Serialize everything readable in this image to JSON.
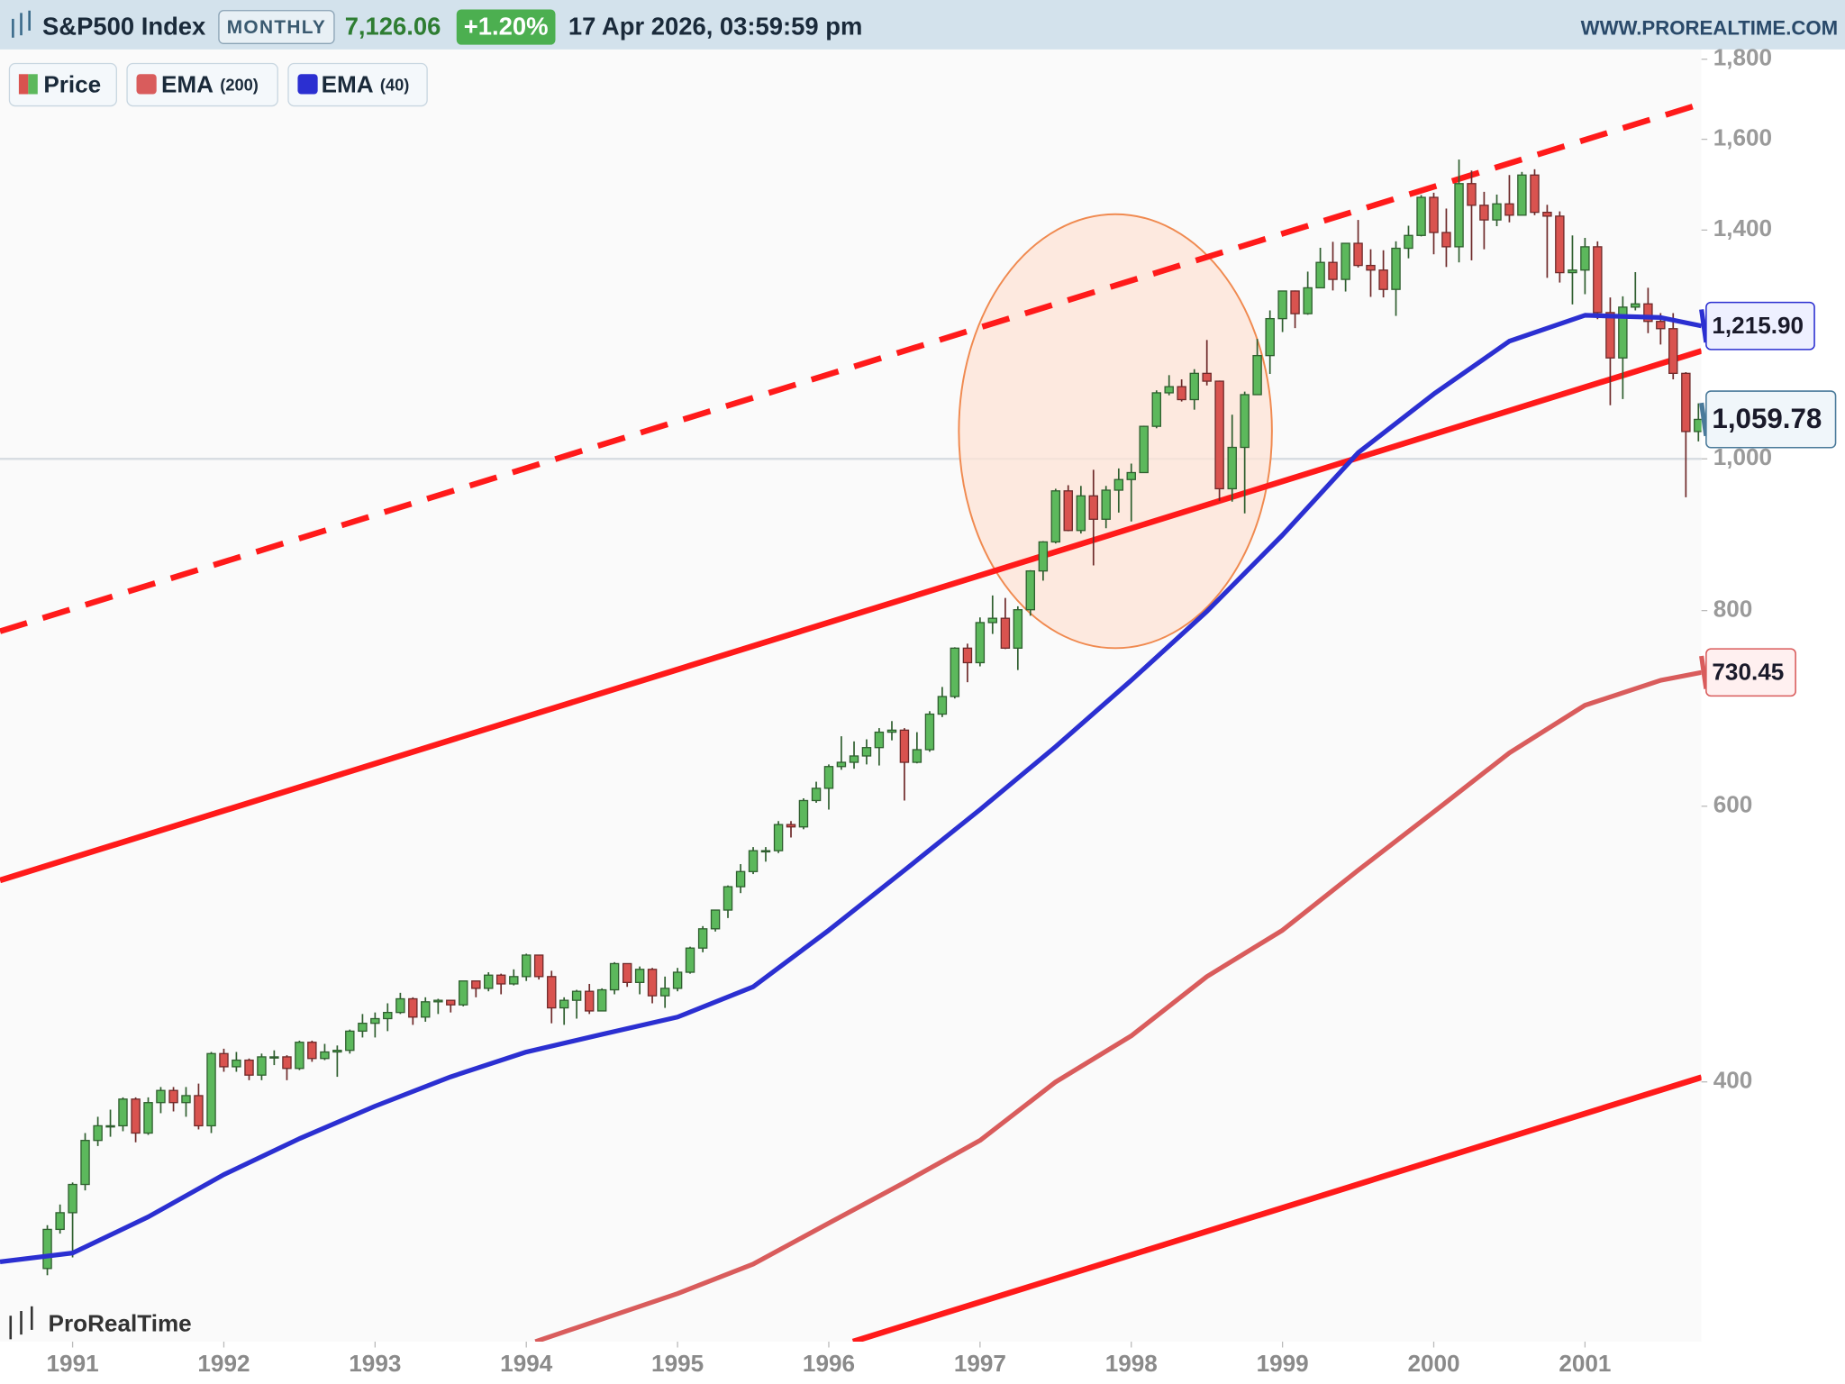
{
  "chart_data": {
    "type": "candlestick",
    "header": {
      "title": "S&P500 Index",
      "timeframe": "MONTHLY",
      "last": "7,126.06",
      "change": "+1.20%",
      "datetime": "17 Apr 2026, 03:59:59 pm",
      "source": "WWW.PROREALTIME.COM"
    },
    "legend": {
      "price": "Price",
      "ema200": "EMA",
      "ema200_period": "(200)",
      "ema40": "EMA",
      "ema40_period": "(40)"
    },
    "watermark": "ProRealTime",
    "log_scale": true,
    "up_color": "#5cb85c",
    "down_color": "#d9534f",
    "up_line": "#2f5f2f",
    "down_line": "#6e2a2a",
    "xlim": [
      1990.52,
      2001.77
    ],
    "xticks": [
      1991,
      1992,
      1993,
      1994,
      1995,
      1996,
      1997,
      1998,
      1999,
      2000,
      2001
    ],
    "ylim": [
      273,
      1826
    ],
    "yticks": [
      {
        "value": 400,
        "label": "400"
      },
      {
        "value": 600,
        "label": "600"
      },
      {
        "value": 800,
        "label": "800"
      },
      {
        "value": 1000,
        "label": "1,000"
      },
      {
        "value": 1400,
        "label": "1,400"
      },
      {
        "value": 1600,
        "label": "1,600"
      },
      {
        "value": 1800,
        "label": "1,800"
      }
    ],
    "hline": 1000,
    "last_close_label": "1,059.78",
    "x": [
      1990.833,
      1990.917,
      1991,
      1991.083,
      1991.167,
      1991.25,
      1991.333,
      1991.417,
      1991.5,
      1991.583,
      1991.667,
      1991.75,
      1991.833,
      1991.917,
      1992,
      1992.083,
      1992.167,
      1992.25,
      1992.333,
      1992.417,
      1992.5,
      1992.583,
      1992.667,
      1992.75,
      1992.833,
      1992.917,
      1993,
      1993.083,
      1993.167,
      1993.25,
      1993.333,
      1993.417,
      1993.5,
      1993.583,
      1993.667,
      1993.75,
      1993.833,
      1993.917,
      1994,
      1994.083,
      1994.167,
      1994.25,
      1994.333,
      1994.417,
      1994.5,
      1994.583,
      1994.667,
      1994.75,
      1994.833,
      1994.917,
      1995,
      1995.083,
      1995.167,
      1995.25,
      1995.333,
      1995.417,
      1995.5,
      1995.583,
      1995.667,
      1995.75,
      1995.833,
      1995.917,
      1996,
      1996.083,
      1996.167,
      1996.25,
      1996.333,
      1996.417,
      1996.5,
      1996.583,
      1996.667,
      1996.75,
      1996.833,
      1996.917,
      1997,
      1997.083,
      1997.167,
      1997.25,
      1997.333,
      1997.417,
      1997.5,
      1997.583,
      1997.667,
      1997.75,
      1997.833,
      1997.917,
      1998,
      1998.083,
      1998.167,
      1998.25,
      1998.333,
      1998.417,
      1998.5,
      1998.583,
      1998.667,
      1998.75,
      1998.833,
      1998.917,
      1999,
      1999.083,
      1999.167,
      1999.25,
      1999.333,
      1999.417,
      1999.5,
      1999.583,
      1999.667,
      1999.75,
      1999.833,
      1999.917,
      2000,
      2000.083,
      2000.167,
      2000.25,
      2000.333,
      2000.417,
      2000.5,
      2000.583,
      2000.667,
      2000.75,
      2000.833,
      2000.917,
      2001,
      2001.083,
      2001.167,
      2001.25,
      2001.333,
      2001.417,
      2001.5,
      2001.583,
      2001.667,
      2001.75
    ],
    "open": [
      304,
      322,
      330,
      344,
      367,
      375,
      375,
      390,
      371,
      388,
      395,
      388,
      392,
      375,
      417,
      409,
      413,
      404,
      415,
      415,
      408,
      424,
      414,
      418,
      419,
      431,
      436,
      439,
      443,
      452,
      440,
      450,
      451,
      448,
      464,
      459,
      468,
      462,
      467,
      482,
      467,
      446,
      451,
      457,
      444,
      458,
      476,
      463,
      472,
      454,
      459,
      470,
      487,
      501,
      515,
      533,
      545,
      562,
      562,
      584,
      582,
      605,
      616,
      636,
      640,
      646,
      654,
      669,
      671,
      640,
      652,
      687,
      705,
      757,
      741,
      786,
      791,
      757,
      801,
      848,
      885,
      954,
      900,
      947,
      915,
      955,
      970,
      980,
      1049,
      1102,
      1112,
      1091,
      1134,
      1121,
      957,
      1017,
      1099,
      1164,
      1229,
      1280,
      1238,
      1286,
      1335,
      1302,
      1373,
      1329,
      1320,
      1283,
      1363,
      1389,
      1469,
      1395,
      1366,
      1499,
      1452,
      1421,
      1455,
      1431,
      1518,
      1437,
      1429,
      1315,
      1320,
      1366,
      1240,
      1160,
      1250,
      1256,
      1224,
      1211,
      1134,
      1041
    ],
    "high": [
      324,
      334,
      345,
      371,
      380,
      384,
      391,
      391,
      391,
      397,
      397,
      397,
      399,
      418,
      420,
      418,
      414,
      417,
      419,
      416,
      425,
      425,
      423,
      422,
      432,
      442,
      443,
      449,
      456,
      453,
      453,
      452,
      451,
      464,
      464,
      470,
      469,
      472,
      483,
      482,
      471,
      453,
      458,
      462,
      459,
      477,
      476,
      474,
      473,
      467,
      473,
      488,
      503,
      515,
      534,
      551,
      565,
      565,
      587,
      587,
      607,
      622,
      638,
      665,
      660,
      662,
      673,
      680,
      673,
      669,
      690,
      715,
      758,
      762,
      792,
      818,
      815,
      805,
      849,
      886,
      957,
      962,
      961,
      984,
      961,
      986,
      993,
      1050,
      1106,
      1131,
      1124,
      1141,
      1191,
      1122,
      1067,
      1104,
      1193,
      1244,
      1280,
      1281,
      1317,
      1364,
      1376,
      1373,
      1421,
      1361,
      1359,
      1377,
      1409,
      1474,
      1479,
      1445,
      1553,
      1528,
      1481,
      1475,
      1518,
      1525,
      1531,
      1453,
      1439,
      1389,
      1384,
      1377,
      1268,
      1270,
      1316,
      1286,
      1239,
      1239,
      1136,
      1085
    ],
    "low": [
      301,
      320,
      309,
      341,
      364,
      369,
      372,
      366,
      370,
      382,
      383,
      380,
      373,
      371,
      406,
      406,
      401,
      401,
      410,
      401,
      407,
      412,
      413,
      403,
      417,
      427,
      427,
      431,
      442,
      435,
      437,
      442,
      443,
      447,
      453,
      457,
      455,
      461,
      464,
      465,
      436,
      435,
      439,
      442,
      444,
      455,
      460,
      455,
      449,
      446,
      457,
      469,
      484,
      499,
      509,
      528,
      543,
      553,
      560,
      573,
      580,
      603,
      597,
      633,
      634,
      638,
      637,
      661,
      605,
      639,
      650,
      684,
      703,
      720,
      737,
      773,
      756,
      733,
      794,
      836,
      883,
      899,
      896,
      855,
      903,
      924,
      912,
      980,
      1046,
      1098,
      1088,
      1075,
      1114,
      940,
      939,
      923,
      1099,
      1133,
      1205,
      1212,
      1236,
      1286,
      1281,
      1279,
      1325,
      1269,
      1268,
      1234,
      1343,
      1387,
      1351,
      1326,
      1335,
      1339,
      1361,
      1408,
      1416,
      1431,
      1431,
      1305,
      1296,
      1255,
      1274,
      1228,
      1082,
      1092,
      1244,
      1203,
      1183,
      1124,
      945,
      1026
    ],
    "close": [
      322,
      330,
      344,
      367,
      375,
      375,
      390,
      371,
      388,
      395,
      388,
      392,
      375,
      417,
      409,
      413,
      404,
      415,
      415,
      408,
      424,
      414,
      418,
      419,
      431,
      436,
      439,
      443,
      452,
      440,
      450,
      451,
      448,
      464,
      459,
      468,
      462,
      467,
      482,
      467,
      446,
      451,
      457,
      444,
      458,
      476,
      463,
      472,
      454,
      459,
      470,
      487,
      501,
      515,
      533,
      545,
      562,
      562,
      584,
      582,
      605,
      616,
      636,
      640,
      646,
      654,
      669,
      671,
      640,
      652,
      687,
      705,
      757,
      741,
      786,
      791,
      757,
      801,
      848,
      885,
      954,
      900,
      947,
      915,
      955,
      970,
      980,
      1049,
      1102,
      1112,
      1091,
      1134,
      1121,
      957,
      1017,
      1099,
      1164,
      1229,
      1280,
      1238,
      1286,
      1335,
      1302,
      1373,
      1329,
      1320,
      1283,
      1363,
      1389,
      1469,
      1395,
      1366,
      1499,
      1452,
      1421,
      1455,
      1431,
      1518,
      1437,
      1429,
      1315,
      1320,
      1366,
      1240,
      1160,
      1250,
      1256,
      1224,
      1211,
      1134,
      1041,
      1059.78
    ],
    "series": [
      {
        "name": "EMA (40)",
        "color": "#2b2fd1",
        "label_bg": "#eef0ff",
        "x": [
          1990.52,
          1991,
          1991.5,
          1992,
          1992.5,
          1993,
          1993.5,
          1994,
          1994.5,
          1995,
          1995.5,
          1996,
          1996.5,
          1997,
          1997.5,
          1998,
          1998.5,
          1999,
          1999.5,
          2000,
          2000.5,
          2001,
          2001.5,
          2001.77
        ],
        "values": [
          307,
          311,
          328,
          349,
          368,
          386,
          403,
          418,
          429,
          440,
          460,
          500,
          546,
          597,
          655,
          722,
          799,
          894,
          1009,
          1100,
          1189,
          1235,
          1231,
          1215.9
        ],
        "last_label": "1,215.90"
      },
      {
        "name": "EMA (200)",
        "color": "#d95c5c",
        "label_bg": "#fff0f0",
        "x": [
          1994.06,
          1995,
          1995.5,
          1996,
          1996.5,
          1997,
          1997.5,
          1998,
          1998.5,
          1999,
          1999.5,
          2000,
          2000.5,
          2001,
          2001.5,
          2001.77
        ],
        "values": [
          273,
          293,
          306,
          325,
          345,
          367,
          400,
          428,
          467,
          500,
          546,
          595,
          649,
          696,
          722,
          730.45
        ],
        "last_label": "730.45"
      }
    ],
    "trendlines": [
      {
        "x": [
          1990.52,
          2001.72
        ],
        "values": [
          776,
          1680
        ],
        "color": "#ff1a1a",
        "dashed": true
      },
      {
        "x": [
          1990.52,
          2001.77
        ],
        "values": [
          538,
          1172
        ],
        "color": "#ff1a1a",
        "dashed": false
      },
      {
        "x": [
          1996.16,
          2001.77
        ],
        "values": [
          273,
          402.7
        ],
        "color": "#ff1a1a",
        "dashed": false
      }
    ],
    "highlight": {
      "x": [
        1996.86,
        1998.93
      ],
      "values": [
        757,
        1433
      ],
      "color": "#f08a50",
      "fill": "#fde3d6"
    }
  }
}
